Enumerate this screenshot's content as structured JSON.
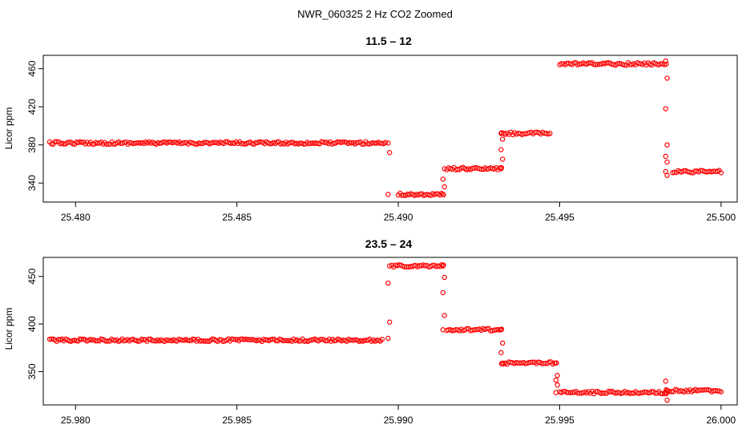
{
  "title": "NWR_060325  2 Hz CO2 Zoomed",
  "colors": {
    "points": "#ff0000",
    "axis": "#000000",
    "background": "#ffffff"
  },
  "chart_data": [
    {
      "type": "scatter",
      "title": "11.5 – 12",
      "xlabel": "",
      "ylabel": "Licor ppm",
      "xlim": [
        25.479,
        25.5005
      ],
      "ylim": [
        320,
        474
      ],
      "xticks": [
        25.48,
        25.485,
        25.49,
        25.495,
        25.5
      ],
      "xtick_labels": [
        "25.480",
        "25.485",
        "25.490",
        "25.495",
        "25.500"
      ],
      "yticks": [
        340,
        380,
        420,
        460
      ],
      "ytick_labels": [
        "340",
        "380",
        "420",
        "460"
      ],
      "marker": "open-circle",
      "series": [
        {
          "name": "CO2 2 Hz",
          "segments": [
            {
              "x_start": 25.4792,
              "x_end": 25.4896,
              "y": 382
            },
            {
              "x_start": 25.49,
              "x_end": 25.4914,
              "y": 328
            },
            {
              "x_start": 25.4915,
              "x_end": 25.4932,
              "y": 355
            },
            {
              "x_start": 25.4932,
              "x_end": 25.4947,
              "y": 392
            },
            {
              "x_start": 25.495,
              "x_end": 25.4983,
              "y": 465
            },
            {
              "x_start": 25.4985,
              "x_end": 25.5,
              "y": 352
            }
          ],
          "transitions": [
            {
              "x": 25.4897,
              "y": [
                382,
                372,
                328
              ]
            },
            {
              "x": 25.4914,
              "y": [
                328,
                336,
                344,
                355
              ]
            },
            {
              "x": 25.4932,
              "y": [
                355,
                365,
                375,
                386,
                392
              ]
            },
            {
              "x": 25.4983,
              "y": [
                468,
                450,
                418,
                380,
                368,
                362,
                352,
                348
              ]
            }
          ]
        }
      ]
    },
    {
      "type": "scatter",
      "title": "23.5 – 24",
      "xlabel": "",
      "ylabel": "Licor ppm",
      "xlim": [
        25.979,
        26.0005
      ],
      "ylim": [
        315,
        470
      ],
      "xticks": [
        25.98,
        25.985,
        25.99,
        25.995,
        26.0
      ],
      "xtick_labels": [
        "25.980",
        "25.985",
        "25.990",
        "25.995",
        "26.000"
      ],
      "yticks": [
        350,
        400,
        450
      ],
      "ytick_labels": [
        "350",
        "400",
        "450"
      ],
      "marker": "open-circle",
      "series": [
        {
          "name": "CO2 2 Hz",
          "segments": [
            {
              "x_start": 25.9792,
              "x_end": 25.9895,
              "y": 383
            },
            {
              "x_start": 25.9898,
              "x_end": 25.9914,
              "y": 461
            },
            {
              "x_start": 25.9915,
              "x_end": 25.9932,
              "y": 394
            },
            {
              "x_start": 25.9932,
              "x_end": 25.9949,
              "y": 359
            },
            {
              "x_start": 25.995,
              "x_end": 25.9983,
              "y": 328
            },
            {
              "x_start": 25.9983,
              "x_end": 26.0,
              "y": 330
            }
          ],
          "transitions": [
            {
              "x": 25.9897,
              "y": [
                385,
                402,
                443,
                461
              ]
            },
            {
              "x": 25.9914,
              "y": [
                461,
                449,
                433,
                409,
                394
              ]
            },
            {
              "x": 25.9932,
              "y": [
                394,
                380,
                370,
                359
              ]
            },
            {
              "x": 25.9949,
              "y": [
                359,
                346,
                341,
                336,
                328
              ]
            },
            {
              "x": 25.9983,
              "y": [
                328,
                320,
                340,
                330
              ]
            }
          ]
        }
      ]
    }
  ]
}
